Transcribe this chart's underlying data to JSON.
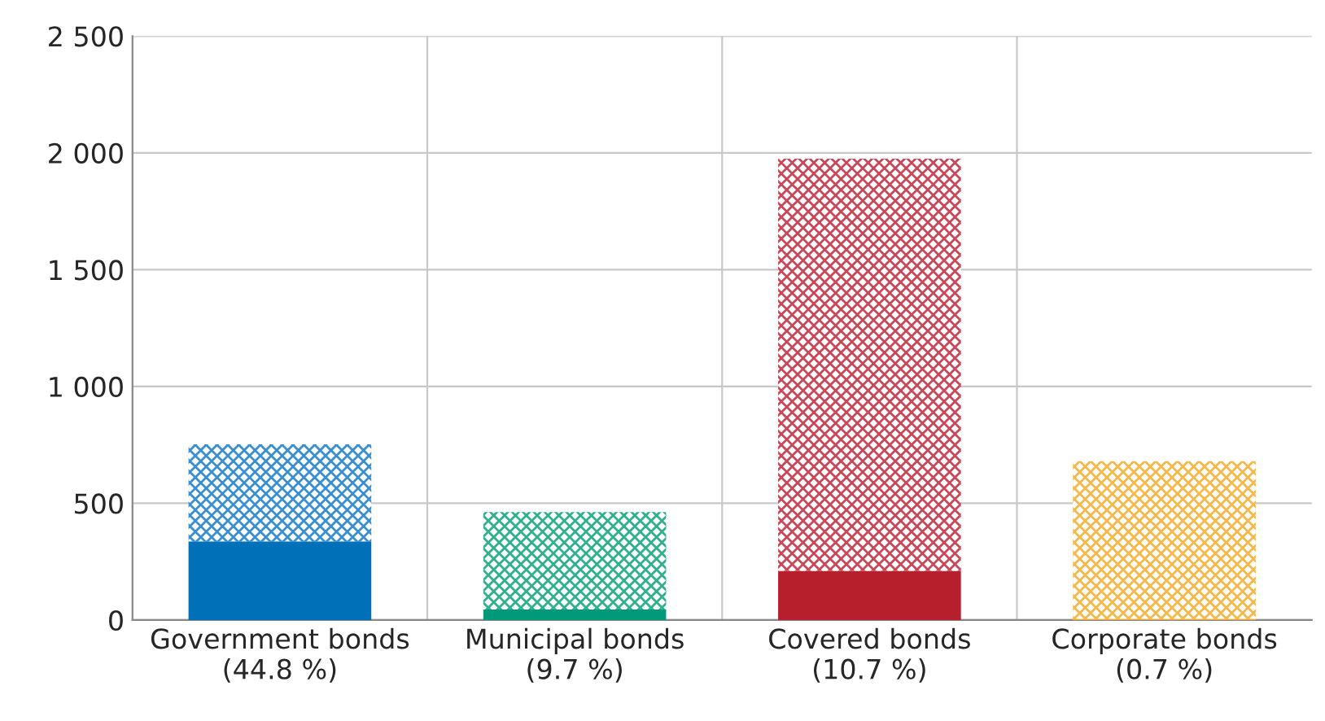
{
  "chart_data": {
    "type": "bar",
    "stacked": true,
    "categories": [
      "Government bonds\n(44.8 %)",
      "Municipal bonds\n(9.7 %)",
      "Covered bonds\n(10.7 %)",
      "Corporate bonds\n(0.7 %)"
    ],
    "series": [
      {
        "colors": [
          "#0070b8",
          "#009a7a",
          "#b81f2d",
          "#f5a623"
        ],
        "values": [
          337,
          45,
          211,
          5
        ]
      },
      {
        "colors": [
          "#3a8fd0",
          "#2fb08f",
          "#c8485a",
          "#f7b84a"
        ],
        "values": [
          415,
          417,
          1764,
          675
        ]
      }
    ],
    "ylim": [
      0,
      2500
    ],
    "yticks": [
      0,
      500,
      {
        "value": 1000,
        "label": "1 000"
      },
      {
        "value": 1500,
        "label": "1 500"
      },
      {
        "value": 2000,
        "label": "2 000"
      },
      {
        "value": 2500,
        "label": "2 500"
      }
    ],
    "grid": true,
    "legend": false
  }
}
